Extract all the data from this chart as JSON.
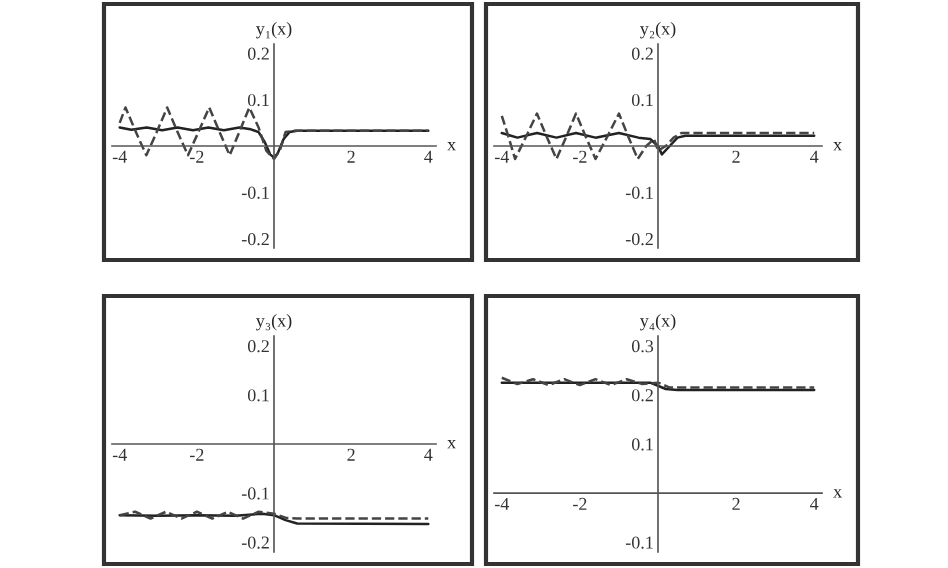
{
  "chart_data": [
    {
      "type": "line",
      "xlabel": "x",
      "ylabel": "y₁(x)",
      "xlim": [
        -4.2,
        4.2
      ],
      "ylim": [
        -0.22,
        0.22
      ],
      "xticks": [
        -4,
        -2,
        2,
        4
      ],
      "yticks": [
        -0.2,
        -0.1,
        0.1,
        0.2
      ],
      "series": [
        {
          "color": "#222222",
          "line_style": "solid",
          "x": [
            -4,
            -3.7,
            -3.3,
            -2.9,
            -2.5,
            -2.1,
            -1.7,
            -1.3,
            -0.9,
            -0.6,
            -0.4,
            -0.25,
            -0.1,
            0,
            0.1,
            0.25,
            0.4,
            0.6,
            4
          ],
          "values": [
            0.04,
            0.035,
            0.04,
            0.034,
            0.04,
            0.034,
            0.04,
            0.034,
            0.04,
            0.036,
            0.03,
            0.01,
            -0.018,
            -0.025,
            -0.015,
            0.015,
            0.03,
            0.033,
            0.033
          ]
        },
        {
          "color": "#444444",
          "line_style": "dashed",
          "x": [
            -4,
            -3.85,
            -3.58,
            -3.31,
            -3.04,
            -2.77,
            -2.5,
            -2.23,
            -1.96,
            -1.68,
            -1.41,
            -1.15,
            -0.9,
            -0.64,
            -0.4,
            -0.2,
            0,
            0.15,
            0.3,
            0.5,
            4
          ],
          "values": [
            0.05,
            0.083,
            0.03,
            -0.02,
            0.03,
            0.083,
            0.03,
            -0.02,
            0.03,
            0.083,
            0.03,
            -0.02,
            0.03,
            0.083,
            0.04,
            -0.01,
            -0.028,
            -0.01,
            0.03,
            0.033,
            0.033
          ]
        }
      ]
    },
    {
      "type": "line",
      "xlabel": "x",
      "ylabel": "y₂(x)",
      "xlim": [
        -4.2,
        4.2
      ],
      "ylim": [
        -0.22,
        0.22
      ],
      "xticks": [
        -4,
        -2,
        2,
        4
      ],
      "yticks": [
        -0.2,
        -0.1,
        0.1,
        0.2
      ],
      "series": [
        {
          "color": "#222222",
          "line_style": "solid",
          "x": [
            -4,
            -3.6,
            -3.1,
            -2.6,
            -2.1,
            -1.6,
            -1.0,
            -0.5,
            -0.2,
            0,
            0.1,
            0.3,
            0.5,
            0.7,
            4
          ],
          "values": [
            0.028,
            0.018,
            0.028,
            0.018,
            0.028,
            0.018,
            0.028,
            0.018,
            0.015,
            0.0,
            -0.018,
            0.0,
            0.018,
            0.022,
            0.022
          ]
        },
        {
          "color": "#444444",
          "line_style": "dashed",
          "x": [
            -4,
            -3.83,
            -3.66,
            -3.38,
            -3.1,
            -2.85,
            -2.6,
            -2.35,
            -2.1,
            -1.85,
            -1.6,
            -1.3,
            -1.0,
            -0.76,
            -0.52,
            -0.3,
            -0.1,
            0,
            0.2,
            0.4,
            0.6,
            4
          ],
          "values": [
            0.065,
            0.02,
            -0.028,
            0.02,
            0.07,
            0.02,
            -0.028,
            0.02,
            0.07,
            0.02,
            -0.028,
            0.02,
            0.07,
            0.02,
            -0.028,
            0.0,
            0.015,
            -0.01,
            0.0,
            0.018,
            0.028,
            0.028
          ]
        }
      ]
    },
    {
      "type": "line",
      "xlabel": "x",
      "ylabel": "y₃(x)",
      "xlim": [
        -4.2,
        4.2
      ],
      "ylim": [
        -0.22,
        0.22
      ],
      "xticks": [
        -4,
        -2,
        2,
        4
      ],
      "yticks": [
        -0.2,
        -0.1,
        0.1,
        0.2
      ],
      "series": [
        {
          "color": "#222222",
          "line_style": "solid",
          "x": [
            -4,
            -3,
            -2,
            -1,
            -0.3,
            0,
            0.3,
            0.6,
            4
          ],
          "values": [
            -0.145,
            -0.146,
            -0.145,
            -0.146,
            -0.142,
            -0.145,
            -0.155,
            -0.162,
            -0.163
          ]
        },
        {
          "color": "#444444",
          "line_style": "dashed",
          "x": [
            -4,
            -3.6,
            -3.2,
            -2.8,
            -2.4,
            -2.0,
            -1.6,
            -1.2,
            -0.8,
            -0.4,
            0,
            0.3,
            0.6,
            4
          ],
          "values": [
            -0.145,
            -0.138,
            -0.152,
            -0.138,
            -0.152,
            -0.138,
            -0.152,
            -0.138,
            -0.152,
            -0.138,
            -0.142,
            -0.15,
            -0.152,
            -0.152
          ]
        }
      ]
    },
    {
      "type": "line",
      "xlabel": "x",
      "ylabel": "y₄(x)",
      "xlim": [
        -4.2,
        4.2
      ],
      "ylim": [
        -0.12,
        0.32
      ],
      "xticks": [
        -4,
        -2,
        2,
        4
      ],
      "yticks": [
        -0.1,
        0.1,
        0.2,
        0.3
      ],
      "series": [
        {
          "color": "#222222",
          "line_style": "solid",
          "x": [
            -4,
            -2,
            -0.2,
            0.2,
            0.5,
            4
          ],
          "values": [
            0.225,
            0.225,
            0.225,
            0.212,
            0.21,
            0.21
          ]
        },
        {
          "color": "#444444",
          "line_style": "dashed",
          "x": [
            -4,
            -3.6,
            -3.2,
            -2.8,
            -2.4,
            -2.0,
            -1.6,
            -1.2,
            -0.8,
            -0.4,
            0,
            0.3,
            4
          ],
          "values": [
            0.235,
            0.222,
            0.232,
            0.22,
            0.232,
            0.22,
            0.232,
            0.22,
            0.232,
            0.222,
            0.225,
            0.215,
            0.215
          ]
        }
      ]
    }
  ]
}
